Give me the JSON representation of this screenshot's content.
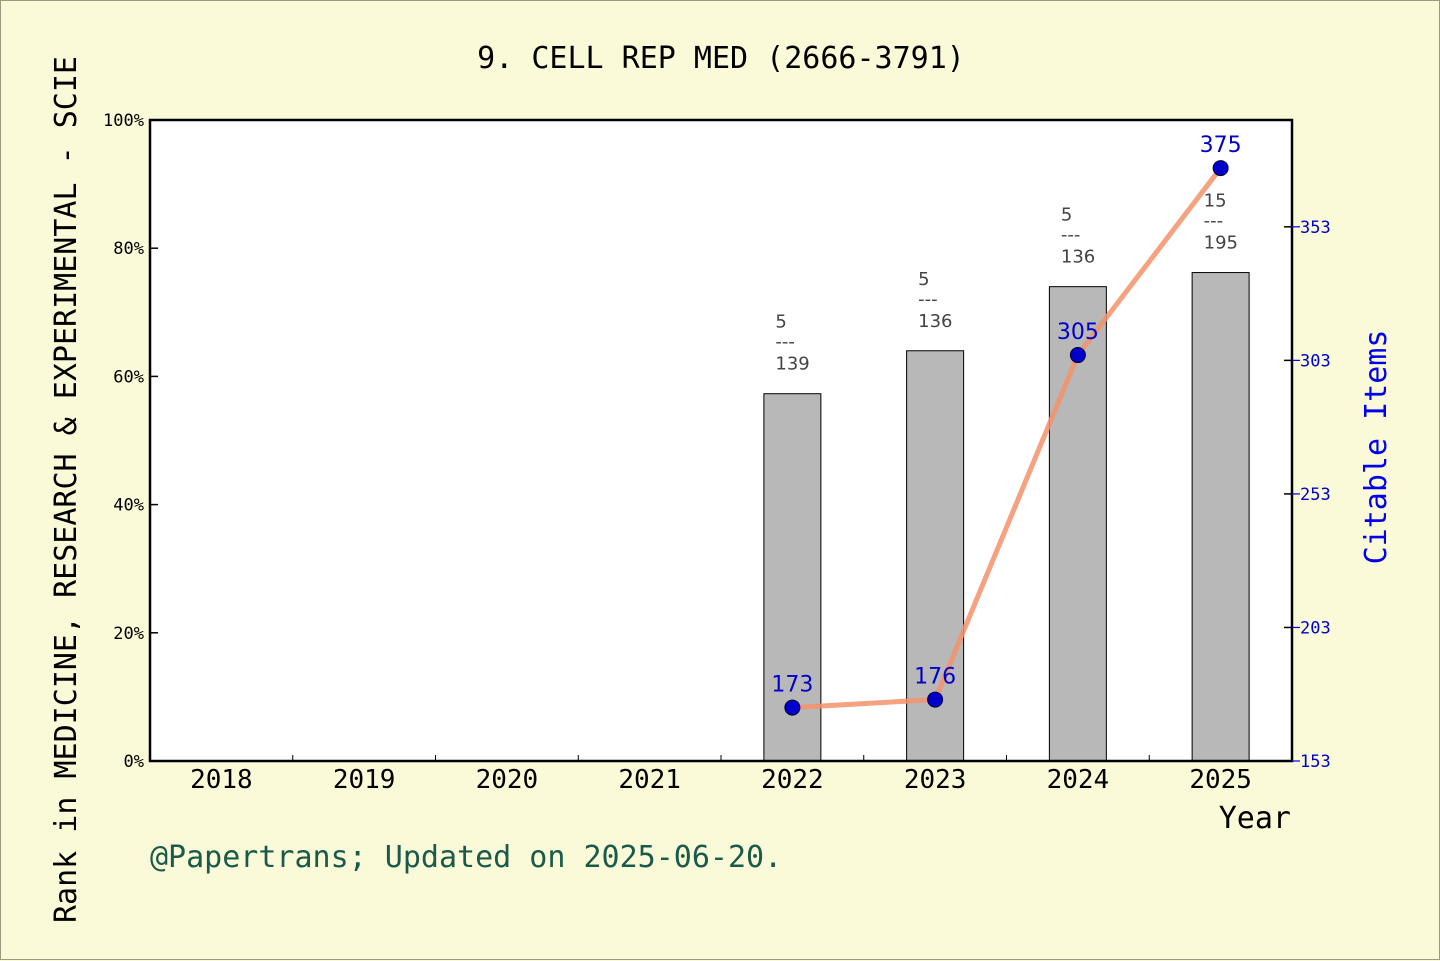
{
  "colors": {
    "background": "#fafad8",
    "plot_bg": "#ffffff",
    "bar_fill": "#b8b8b8",
    "line": "#f4906a",
    "point": "#0000cc",
    "right_axis": "#0000ee",
    "credit": "#1a5a4a"
  },
  "credit": "@Papertrans; Updated on 2025-06-20.",
  "chart_data": {
    "type": "bar",
    "title": "9. CELL REP MED (2666-3791)",
    "xlabel": "Year",
    "ylabel": "Rank in MEDICINE, RESEARCH & EXPERIMENTAL - SCIE",
    "ylabel_right": "Citable Items",
    "categories": [
      "2018",
      "2019",
      "2020",
      "2021",
      "2022",
      "2023",
      "2024",
      "2025"
    ],
    "ylim": [
      0,
      100
    ],
    "y_ticks": [
      "0%",
      "20%",
      "40%",
      "60%",
      "80%",
      "100%"
    ],
    "y_tick_values": [
      0,
      20,
      40,
      60,
      80,
      100
    ],
    "y2lim": [
      153,
      393
    ],
    "y2_ticks": [
      "153",
      "203",
      "253",
      "303",
      "353"
    ],
    "y2_tick_values": [
      153,
      203,
      253,
      303,
      353
    ],
    "bars": [
      {
        "year": "2022",
        "value": 57.3,
        "rank": "5",
        "total": "139",
        "sep": "---"
      },
      {
        "year": "2023",
        "value": 64.0,
        "rank": "5",
        "total": "136",
        "sep": "---"
      },
      {
        "year": "2024",
        "value": 74.0,
        "rank": "5",
        "total": "136",
        "sep": "---"
      },
      {
        "year": "2025",
        "value": 76.2,
        "rank": "15",
        "total": "195",
        "sep": "---"
      }
    ],
    "series": [
      {
        "x": [
          "2022",
          "2023",
          "2024",
          "2025"
        ],
        "values": [
          173,
          176,
          305,
          375
        ],
        "labels": [
          "173",
          "176",
          "305",
          "375"
        ]
      }
    ],
    "grid": false
  }
}
